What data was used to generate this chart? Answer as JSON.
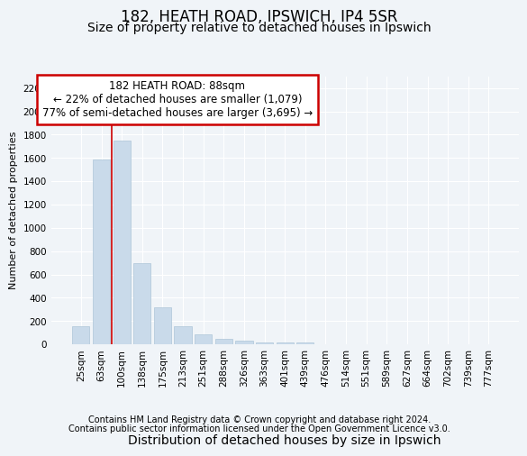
{
  "title1": "182, HEATH ROAD, IPSWICH, IP4 5SR",
  "title2": "Size of property relative to detached houses in Ipswich",
  "xlabel": "Distribution of detached houses by size in Ipswich",
  "ylabel": "Number of detached properties",
  "categories": [
    "25sqm",
    "63sqm",
    "100sqm",
    "138sqm",
    "175sqm",
    "213sqm",
    "251sqm",
    "288sqm",
    "326sqm",
    "363sqm",
    "401sqm",
    "439sqm",
    "476sqm",
    "514sqm",
    "551sqm",
    "589sqm",
    "627sqm",
    "664sqm",
    "702sqm",
    "739sqm",
    "777sqm"
  ],
  "values": [
    160,
    1590,
    1750,
    700,
    315,
    155,
    85,
    50,
    30,
    20,
    15,
    20,
    0,
    0,
    0,
    0,
    0,
    0,
    0,
    0,
    0
  ],
  "bar_color": "#c9daea",
  "bar_edge_color": "#aec6d8",
  "vline_x_idx": 2,
  "vline_color": "#cc0000",
  "annotation_text": "182 HEATH ROAD: 88sqm\n← 22% of detached houses are smaller (1,079)\n77% of semi-detached houses are larger (3,695) →",
  "annotation_box_color": "#ffffff",
  "annotation_box_edge": "#cc0000",
  "ylim": [
    0,
    2300
  ],
  "yticks": [
    0,
    200,
    400,
    600,
    800,
    1000,
    1200,
    1400,
    1600,
    1800,
    2000,
    2200
  ],
  "bg_color": "#f0f4f8",
  "plot_bg_color": "#f0f4f8",
  "grid_color": "#ffffff",
  "footer1": "Contains HM Land Registry data © Crown copyright and database right 2024.",
  "footer2": "Contains public sector information licensed under the Open Government Licence v3.0.",
  "title1_fontsize": 12,
  "title2_fontsize": 10,
  "xlabel_fontsize": 10,
  "ylabel_fontsize": 8,
  "tick_fontsize": 7.5,
  "footer_fontsize": 7,
  "annotation_fontsize": 8.5
}
